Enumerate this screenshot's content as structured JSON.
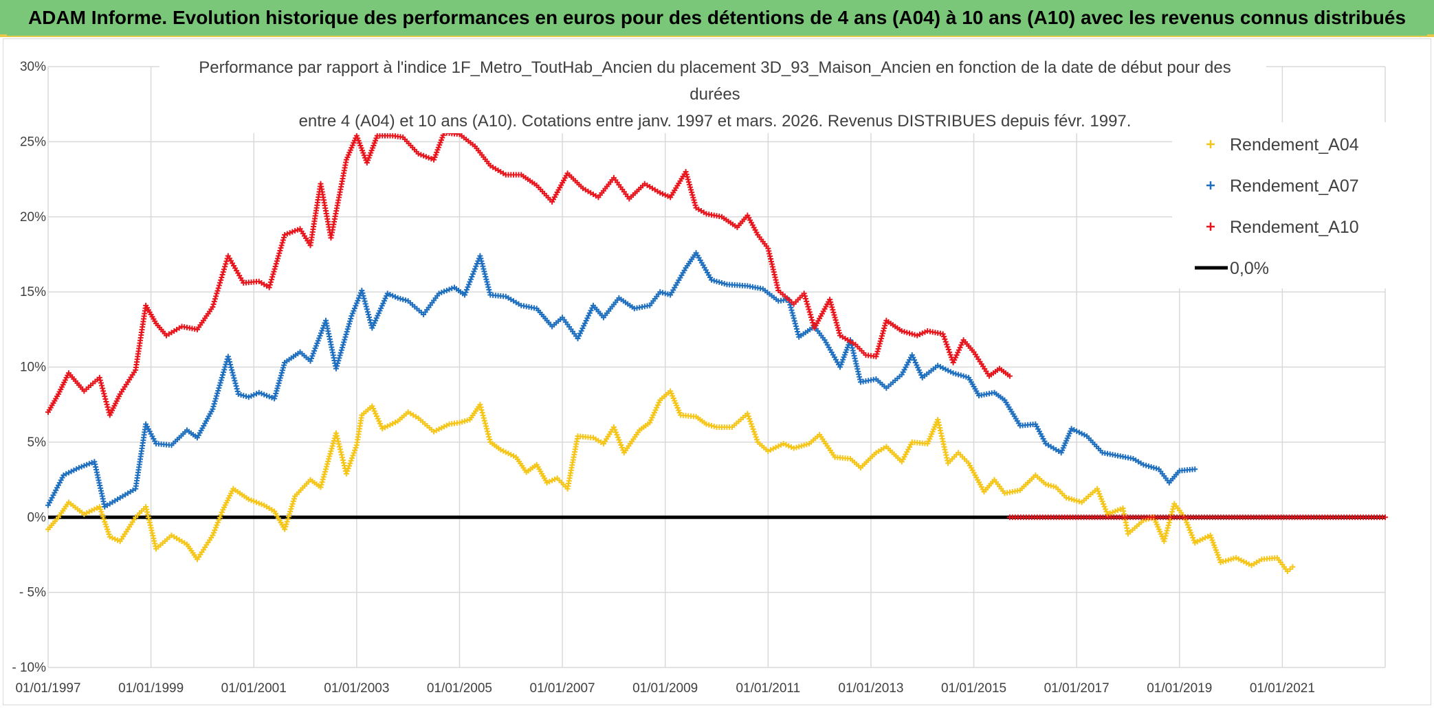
{
  "header": {
    "title": "ADAM Informe. Evolution historique des performances en euros pour des détentions de 4 ans (A04) à 10 ans (A10) avec les revenus connus distribués"
  },
  "colors": {
    "banner": "#7ac77a",
    "a04": "#f5c518",
    "a07": "#1f6fbf",
    "a10": "#e8141c",
    "zero": "#000000",
    "grid": "#d9d9d9"
  },
  "chart_data": {
    "type": "scatter",
    "title_lines": [
      "Performance par rapport à l'indice 1F_Metro_ToutHab_Ancien  du placement 3D_93_Maison_Ancien en fonction de la date de début pour des",
      "durées",
      "entre 4 (A04) et 10 ans (A10). Cotations entre janv. 1997 et mars. 2026. Revenus DISTRIBUES depuis févr. 1997."
    ],
    "xlabel": "",
    "ylabel": "",
    "xlim": [
      1997.0,
      2023.0
    ],
    "ylim": [
      -10,
      30
    ],
    "yticks": [
      30,
      25,
      20,
      15,
      10,
      5,
      0,
      -5,
      -10
    ],
    "ytick_labels": [
      "30%",
      "25%",
      "20%",
      "15%",
      "10%",
      "5%",
      "0%",
      "- 5%",
      "- 10%"
    ],
    "xticks": [
      1997,
      1999,
      2001,
      2003,
      2005,
      2007,
      2009,
      2011,
      2013,
      2015,
      2017,
      2019,
      2021
    ],
    "xtick_labels": [
      "01/01/1997",
      "01/01/1999",
      "01/01/2001",
      "01/01/2003",
      "01/01/2005",
      "01/01/2007",
      "01/01/2009",
      "01/01/2011",
      "01/01/2013",
      "01/01/2015",
      "01/01/2017",
      "01/01/2019",
      "01/01/2021"
    ],
    "legend": [
      "Rendement_A04",
      "Rendement_A07",
      "Rendement_A10",
      "0,0%"
    ],
    "legend_position": "top-right",
    "series": [
      {
        "name": "Rendement_A04",
        "marker": "+",
        "points": [
          [
            1997.0,
            -0.8
          ],
          [
            1997.2,
            0.0
          ],
          [
            1997.4,
            1.0
          ],
          [
            1997.7,
            0.2
          ],
          [
            1998.0,
            0.7
          ],
          [
            1998.2,
            -1.3
          ],
          [
            1998.4,
            -1.6
          ],
          [
            1998.7,
            0.0
          ],
          [
            1998.9,
            0.7
          ],
          [
            1999.1,
            -2.1
          ],
          [
            1999.4,
            -1.2
          ],
          [
            1999.7,
            -1.8
          ],
          [
            1999.9,
            -2.8
          ],
          [
            2000.2,
            -1.2
          ],
          [
            2000.4,
            0.5
          ],
          [
            2000.6,
            1.9
          ],
          [
            2000.9,
            1.2
          ],
          [
            2001.2,
            0.8
          ],
          [
            2001.4,
            0.4
          ],
          [
            2001.6,
            -0.8
          ],
          [
            2001.8,
            1.4
          ],
          [
            2002.1,
            2.5
          ],
          [
            2002.3,
            2.0
          ],
          [
            2002.5,
            4.4
          ],
          [
            2002.6,
            5.6
          ],
          [
            2002.8,
            2.9
          ],
          [
            2003.0,
            4.8
          ],
          [
            2003.1,
            6.8
          ],
          [
            2003.3,
            7.4
          ],
          [
            2003.5,
            5.9
          ],
          [
            2003.8,
            6.4
          ],
          [
            2004.0,
            7.0
          ],
          [
            2004.2,
            6.6
          ],
          [
            2004.5,
            5.7
          ],
          [
            2004.8,
            6.2
          ],
          [
            2005.0,
            6.3
          ],
          [
            2005.2,
            6.5
          ],
          [
            2005.4,
            7.5
          ],
          [
            2005.6,
            5.0
          ],
          [
            2005.8,
            4.5
          ],
          [
            2006.1,
            4.0
          ],
          [
            2006.3,
            3.0
          ],
          [
            2006.5,
            3.5
          ],
          [
            2006.7,
            2.3
          ],
          [
            2006.9,
            2.6
          ],
          [
            2007.1,
            1.9
          ],
          [
            2007.3,
            5.4
          ],
          [
            2007.6,
            5.3
          ],
          [
            2007.8,
            4.9
          ],
          [
            2008.0,
            6.0
          ],
          [
            2008.2,
            4.3
          ],
          [
            2008.5,
            5.8
          ],
          [
            2008.7,
            6.3
          ],
          [
            2008.9,
            7.8
          ],
          [
            2009.1,
            8.4
          ],
          [
            2009.3,
            6.8
          ],
          [
            2009.6,
            6.7
          ],
          [
            2009.8,
            6.2
          ],
          [
            2010.0,
            6.0
          ],
          [
            2010.3,
            6.0
          ],
          [
            2010.6,
            6.9
          ],
          [
            2010.8,
            5.0
          ],
          [
            2011.0,
            4.4
          ],
          [
            2011.3,
            4.9
          ],
          [
            2011.5,
            4.6
          ],
          [
            2011.8,
            4.9
          ],
          [
            2012.0,
            5.5
          ],
          [
            2012.3,
            4.0
          ],
          [
            2012.6,
            3.9
          ],
          [
            2012.8,
            3.3
          ],
          [
            2013.1,
            4.3
          ],
          [
            2013.3,
            4.7
          ],
          [
            2013.6,
            3.7
          ],
          [
            2013.8,
            5.0
          ],
          [
            2014.1,
            4.9
          ],
          [
            2014.3,
            6.5
          ],
          [
            2014.5,
            3.6
          ],
          [
            2014.7,
            4.3
          ],
          [
            2014.9,
            3.6
          ],
          [
            2015.2,
            1.7
          ],
          [
            2015.4,
            2.5
          ],
          [
            2015.6,
            1.6
          ],
          [
            2015.9,
            1.8
          ],
          [
            2016.2,
            2.8
          ],
          [
            2016.4,
            2.2
          ],
          [
            2016.6,
            2.0
          ],
          [
            2016.8,
            1.3
          ],
          [
            2017.1,
            1.0
          ],
          [
            2017.4,
            1.9
          ],
          [
            2017.6,
            0.2
          ],
          [
            2017.9,
            0.6
          ],
          [
            2018.0,
            -1.1
          ],
          [
            2018.3,
            -0.2
          ],
          [
            2018.5,
            0.0
          ],
          [
            2018.7,
            -1.6
          ],
          [
            2018.9,
            0.9
          ],
          [
            2019.1,
            0.0
          ],
          [
            2019.3,
            -1.7
          ],
          [
            2019.6,
            -1.2
          ],
          [
            2019.8,
            -3.0
          ],
          [
            2020.1,
            -2.7
          ],
          [
            2020.4,
            -3.2
          ],
          [
            2020.6,
            -2.8
          ],
          [
            2020.9,
            -2.7
          ],
          [
            2021.1,
            -3.6
          ],
          [
            2021.2,
            -3.3
          ]
        ]
      },
      {
        "name": "Rendement_A07",
        "marker": "+",
        "points": [
          [
            1997.0,
            0.8
          ],
          [
            1997.3,
            2.8
          ],
          [
            1997.6,
            3.3
          ],
          [
            1997.9,
            3.7
          ],
          [
            1998.1,
            0.7
          ],
          [
            1998.4,
            1.3
          ],
          [
            1998.7,
            1.9
          ],
          [
            1998.9,
            6.2
          ],
          [
            1999.1,
            4.9
          ],
          [
            1999.4,
            4.8
          ],
          [
            1999.7,
            5.8
          ],
          [
            1999.9,
            5.3
          ],
          [
            2000.2,
            7.2
          ],
          [
            2000.5,
            10.7
          ],
          [
            2000.7,
            8.2
          ],
          [
            2000.9,
            8.0
          ],
          [
            2001.1,
            8.3
          ],
          [
            2001.4,
            7.9
          ],
          [
            2001.6,
            10.3
          ],
          [
            2001.9,
            11.0
          ],
          [
            2002.1,
            10.4
          ],
          [
            2002.4,
            13.1
          ],
          [
            2002.6,
            9.9
          ],
          [
            2002.9,
            13.4
          ],
          [
            2003.1,
            15.1
          ],
          [
            2003.3,
            12.6
          ],
          [
            2003.6,
            14.9
          ],
          [
            2003.8,
            14.6
          ],
          [
            2004.0,
            14.4
          ],
          [
            2004.3,
            13.5
          ],
          [
            2004.6,
            14.9
          ],
          [
            2004.9,
            15.3
          ],
          [
            2005.1,
            14.8
          ],
          [
            2005.4,
            17.4
          ],
          [
            2005.6,
            14.8
          ],
          [
            2005.9,
            14.7
          ],
          [
            2006.2,
            14.1
          ],
          [
            2006.5,
            13.9
          ],
          [
            2006.8,
            12.7
          ],
          [
            2007.0,
            13.3
          ],
          [
            2007.3,
            11.9
          ],
          [
            2007.6,
            14.1
          ],
          [
            2007.8,
            13.3
          ],
          [
            2008.1,
            14.6
          ],
          [
            2008.4,
            13.9
          ],
          [
            2008.7,
            14.1
          ],
          [
            2008.9,
            15.0
          ],
          [
            2009.1,
            14.8
          ],
          [
            2009.4,
            16.6
          ],
          [
            2009.6,
            17.6
          ],
          [
            2009.9,
            15.8
          ],
          [
            2010.2,
            15.5
          ],
          [
            2010.6,
            15.4
          ],
          [
            2010.9,
            15.2
          ],
          [
            2011.2,
            14.4
          ],
          [
            2011.4,
            14.5
          ],
          [
            2011.6,
            12.0
          ],
          [
            2011.9,
            12.7
          ],
          [
            2012.1,
            11.8
          ],
          [
            2012.4,
            10.0
          ],
          [
            2012.6,
            11.8
          ],
          [
            2012.8,
            9.0
          ],
          [
            2013.1,
            9.2
          ],
          [
            2013.3,
            8.6
          ],
          [
            2013.6,
            9.5
          ],
          [
            2013.8,
            10.8
          ],
          [
            2014.0,
            9.3
          ],
          [
            2014.3,
            10.1
          ],
          [
            2014.6,
            9.6
          ],
          [
            2014.9,
            9.3
          ],
          [
            2015.1,
            8.1
          ],
          [
            2015.4,
            8.3
          ],
          [
            2015.6,
            7.8
          ],
          [
            2015.9,
            6.1
          ],
          [
            2016.2,
            6.2
          ],
          [
            2016.4,
            4.9
          ],
          [
            2016.7,
            4.3
          ],
          [
            2016.9,
            5.9
          ],
          [
            2017.2,
            5.4
          ],
          [
            2017.5,
            4.3
          ],
          [
            2017.8,
            4.1
          ],
          [
            2018.1,
            3.9
          ],
          [
            2018.3,
            3.5
          ],
          [
            2018.6,
            3.2
          ],
          [
            2018.8,
            2.3
          ],
          [
            2019.0,
            3.1
          ],
          [
            2019.3,
            3.2
          ]
        ]
      },
      {
        "name": "Rendement_A10",
        "marker": "+",
        "points": [
          [
            1997.0,
            7.0
          ],
          [
            1997.2,
            8.2
          ],
          [
            1997.4,
            9.6
          ],
          [
            1997.7,
            8.4
          ],
          [
            1998.0,
            9.3
          ],
          [
            1998.2,
            6.8
          ],
          [
            1998.4,
            8.2
          ],
          [
            1998.7,
            9.8
          ],
          [
            1998.9,
            14.1
          ],
          [
            1999.1,
            12.9
          ],
          [
            1999.3,
            12.1
          ],
          [
            1999.6,
            12.7
          ],
          [
            1999.9,
            12.5
          ],
          [
            2000.2,
            14.0
          ],
          [
            2000.5,
            17.4
          ],
          [
            2000.8,
            15.6
          ],
          [
            2001.1,
            15.7
          ],
          [
            2001.3,
            15.3
          ],
          [
            2001.6,
            18.8
          ],
          [
            2001.9,
            19.2
          ],
          [
            2002.1,
            18.1
          ],
          [
            2002.3,
            22.2
          ],
          [
            2002.5,
            18.6
          ],
          [
            2002.8,
            23.8
          ],
          [
            2003.0,
            25.4
          ],
          [
            2003.2,
            23.6
          ],
          [
            2003.4,
            25.4
          ],
          [
            2003.7,
            25.4
          ],
          [
            2003.9,
            25.3
          ],
          [
            2004.2,
            24.2
          ],
          [
            2004.5,
            23.8
          ],
          [
            2004.7,
            25.6
          ],
          [
            2005.0,
            25.5
          ],
          [
            2005.3,
            24.7
          ],
          [
            2005.6,
            23.4
          ],
          [
            2005.9,
            22.8
          ],
          [
            2006.2,
            22.8
          ],
          [
            2006.5,
            22.1
          ],
          [
            2006.8,
            21.0
          ],
          [
            2007.1,
            22.9
          ],
          [
            2007.4,
            21.9
          ],
          [
            2007.7,
            21.3
          ],
          [
            2008.0,
            22.6
          ],
          [
            2008.3,
            21.2
          ],
          [
            2008.6,
            22.2
          ],
          [
            2008.9,
            21.6
          ],
          [
            2009.1,
            21.3
          ],
          [
            2009.4,
            23.0
          ],
          [
            2009.6,
            20.6
          ],
          [
            2009.8,
            20.2
          ],
          [
            2010.1,
            20.0
          ],
          [
            2010.4,
            19.3
          ],
          [
            2010.6,
            20.1
          ],
          [
            2010.8,
            18.8
          ],
          [
            2011.0,
            17.9
          ],
          [
            2011.2,
            15.1
          ],
          [
            2011.5,
            14.2
          ],
          [
            2011.7,
            14.9
          ],
          [
            2011.9,
            12.6
          ],
          [
            2012.2,
            14.5
          ],
          [
            2012.4,
            12.1
          ],
          [
            2012.7,
            11.5
          ],
          [
            2012.9,
            10.8
          ],
          [
            2013.1,
            10.7
          ],
          [
            2013.3,
            13.1
          ],
          [
            2013.6,
            12.4
          ],
          [
            2013.9,
            12.1
          ],
          [
            2014.1,
            12.4
          ],
          [
            2014.4,
            12.2
          ],
          [
            2014.6,
            10.3
          ],
          [
            2014.8,
            11.8
          ],
          [
            2015.0,
            11.0
          ],
          [
            2015.3,
            9.4
          ],
          [
            2015.5,
            9.9
          ],
          [
            2015.7,
            9.4
          ]
        ]
      },
      {
        "name": "0,0%",
        "marker": "line",
        "points": [
          [
            1997.0,
            0.0
          ],
          [
            2023.0,
            0.0
          ]
        ]
      },
      {
        "name": "Rendement_A10 (0%)",
        "marker": "+",
        "points": [
          [
            2015.7,
            0.0
          ],
          [
            2023.0,
            0.0
          ]
        ]
      }
    ]
  }
}
